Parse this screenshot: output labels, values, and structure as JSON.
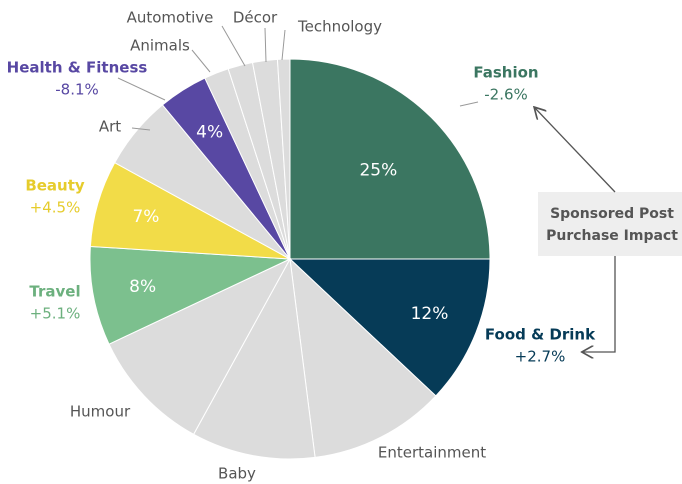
{
  "chart_data": {
    "type": "pie",
    "categories": [
      "Fashion",
      "Food & Drink",
      "Entertainment",
      "Baby",
      "Humour",
      "Travel",
      "Beauty",
      "Art",
      "Health & Fitness",
      "Animals",
      "Automotive",
      "Décor",
      "Technology"
    ],
    "values": [
      25,
      12,
      11,
      10,
      10,
      8,
      7,
      6,
      4,
      2,
      2,
      2,
      1
    ],
    "value_labels": [
      "25%",
      "12%",
      null,
      null,
      null,
      "8%",
      "7%",
      null,
      "4%",
      null,
      null,
      null,
      null
    ],
    "impact_labels": [
      "-2.6%",
      "+2.7%",
      null,
      null,
      null,
      "+5.1%",
      "+4.5%",
      null,
      "-8.1%",
      null,
      null,
      null,
      null
    ],
    "colors": [
      "#3b7661",
      "#063b57",
      "#dcdcdc",
      "#dcdcdc",
      "#dcdcdc",
      "#7cc08e",
      "#f2dc48",
      "#dcdcdc",
      "#5848a3",
      "#dcdcdc",
      "#dcdcdc",
      "#dcdcdc",
      "#dcdcdc"
    ],
    "callout": [
      "Sponsored Post",
      "Purchase Impact"
    ]
  }
}
